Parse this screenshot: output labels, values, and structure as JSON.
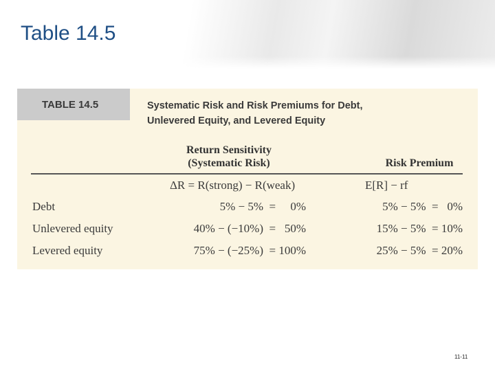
{
  "slide": {
    "title": "Table 14.5",
    "page_number": "11-11"
  },
  "table": {
    "number": "TABLE 14.5",
    "caption_line1": "Systematic Risk and Risk Premiums for Debt,",
    "caption_line2": "Unlevered Equity, and Levered Equity",
    "columns": [
      {
        "line1": "Return Sensitivity",
        "line2": "(Systematic Risk)"
      },
      {
        "line1": "Risk Premium"
      }
    ],
    "formulas": [
      "ΔR = R(strong) − R(weak)",
      "E[R] − rf"
    ],
    "rows": [
      {
        "label": "Debt",
        "sensitivity": "5% − 5%  =     0%",
        "premium": "5% − 5%  =   0%"
      },
      {
        "label": "Unlevered equity",
        "sensitivity": "40% − (−10%)  =   50%",
        "premium": "15% − 5%  = 10%"
      },
      {
        "label": "Levered equity",
        "sensitivity": "75% − (−25%)  = 100%",
        "premium": "25% − 5%  = 20%"
      }
    ]
  },
  "colors": {
    "title": "#1f4f85",
    "panel": "#fbf5e2",
    "number_box": "#cbcbcb"
  }
}
